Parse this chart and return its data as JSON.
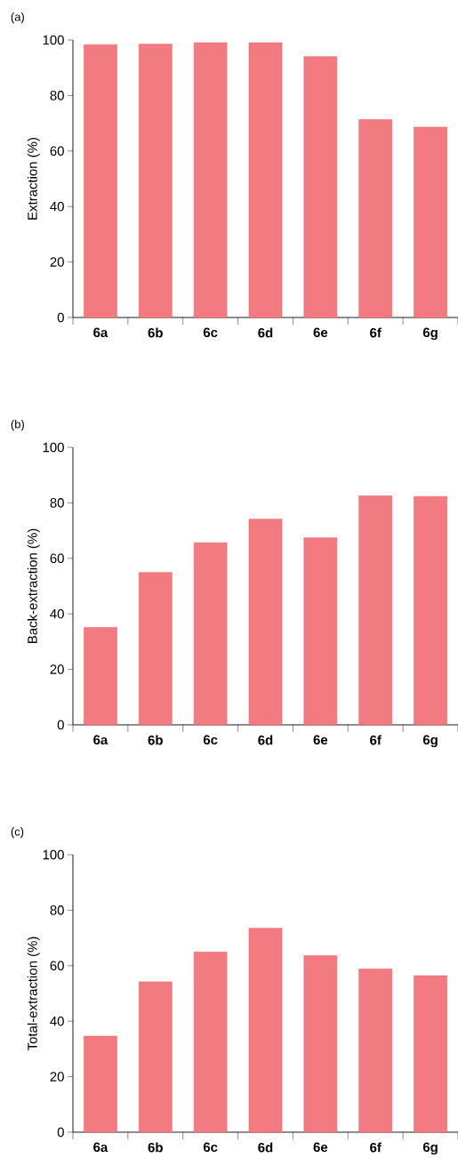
{
  "chart_data": [
    {
      "type": "bar",
      "title": "(a)",
      "ylabel": "Extraction (%)",
      "categories": [
        "6a",
        "6b",
        "6c",
        "6d",
        "6e",
        "6f",
        "6g"
      ],
      "values": [
        98.3,
        98.5,
        99,
        99,
        94,
        71.3,
        68.6
      ],
      "color": "#f27b82",
      "ylim": [
        0,
        100
      ],
      "yticks": [
        0,
        20,
        40,
        60,
        80,
        100
      ]
    },
    {
      "type": "bar",
      "title": "(b)",
      "ylabel": "Back-extraction (%)",
      "categories": [
        "6a",
        "6b",
        "6c",
        "6d",
        "6e",
        "6f",
        "6g"
      ],
      "values": [
        35.1,
        54.9,
        65.6,
        74.1,
        67.4,
        82.5,
        82.3
      ],
      "color": "#f27b82",
      "ylim": [
        0,
        100
      ],
      "yticks": [
        0,
        20,
        40,
        60,
        80,
        100
      ]
    },
    {
      "type": "bar",
      "title": "(c)",
      "ylabel": "Total-extraction (%)",
      "categories": [
        "6a",
        "6b",
        "6c",
        "6d",
        "6e",
        "6f",
        "6g"
      ],
      "values": [
        34.6,
        54.2,
        64.9,
        73.5,
        63.6,
        58.8,
        56.4
      ],
      "color": "#f27b82",
      "ylim": [
        0,
        100
      ],
      "yticks": [
        0,
        20,
        40,
        60,
        80,
        100
      ]
    }
  ]
}
